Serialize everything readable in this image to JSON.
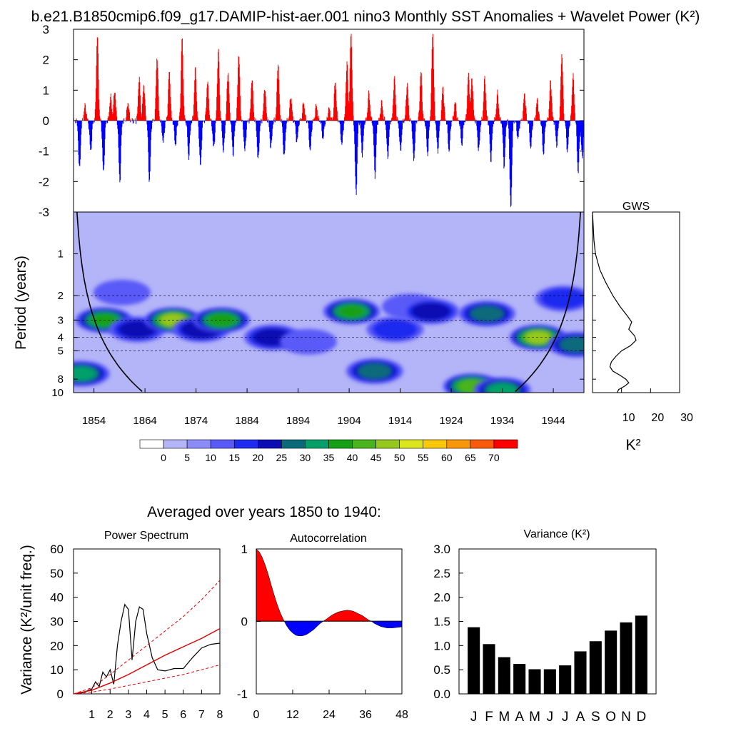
{
  "title": "b.e21.B1850cmip6.f09_g17.DAMIP-hist-aer.001 nino3 Monthly SST Anomalies + Wavelet Power (K²)",
  "colors": {
    "positive": "#ff0000",
    "negative": "#0000ff"
  },
  "chart_data": [
    {
      "id": "anomaly",
      "type": "area",
      "x_range": [
        1850,
        1950
      ],
      "ylim": [
        -3,
        3
      ],
      "y_ticks": [
        "3",
        "2",
        "1",
        "0",
        "-1",
        "-2",
        "-3"
      ],
      "events": [
        {
          "year": 1851.1,
          "amp": -1.6
        },
        {
          "year": 1852.2,
          "amp": 0.5
        },
        {
          "year": 1853.3,
          "amp": -1.0
        },
        {
          "year": 1854.6,
          "amp": 2.8
        },
        {
          "year": 1855.8,
          "amp": -1.7
        },
        {
          "year": 1857.2,
          "amp": 0.8
        },
        {
          "year": 1858.0,
          "amp": 1.0
        },
        {
          "year": 1859.0,
          "amp": -2.0
        },
        {
          "year": 1860.6,
          "amp": 0.6
        },
        {
          "year": 1862.8,
          "amp": 1.4
        },
        {
          "year": 1863.7,
          "amp": 1.2
        },
        {
          "year": 1864.8,
          "amp": -2.0
        },
        {
          "year": 1866.3,
          "amp": 2.1
        },
        {
          "year": 1867.5,
          "amp": -0.7
        },
        {
          "year": 1868.7,
          "amp": 1.6
        },
        {
          "year": 1869.9,
          "amp": -0.8
        },
        {
          "year": 1871.2,
          "amp": 2.7
        },
        {
          "year": 1872.5,
          "amp": -1.2
        },
        {
          "year": 1873.8,
          "amp": 1.7
        },
        {
          "year": 1874.8,
          "amp": -1.5
        },
        {
          "year": 1876.2,
          "amp": 1.3
        },
        {
          "year": 1877.4,
          "amp": -0.9
        },
        {
          "year": 1878.3,
          "amp": 2.3
        },
        {
          "year": 1879.3,
          "amp": -1.0
        },
        {
          "year": 1880.2,
          "amp": 1.6
        },
        {
          "year": 1881.2,
          "amp": -1.1
        },
        {
          "year": 1882.3,
          "amp": 2.2
        },
        {
          "year": 1883.5,
          "amp": -1.0
        },
        {
          "year": 1884.9,
          "amp": 1.4
        },
        {
          "year": 1886.1,
          "amp": -1.3
        },
        {
          "year": 1887.4,
          "amp": 1.1
        },
        {
          "year": 1888.6,
          "amp": -0.9
        },
        {
          "year": 1890.0,
          "amp": 1.9
        },
        {
          "year": 1891.2,
          "amp": -1.2
        },
        {
          "year": 1892.5,
          "amp": 0.8
        },
        {
          "year": 1893.7,
          "amp": -0.7
        },
        {
          "year": 1895.0,
          "amp": 0.6
        },
        {
          "year": 1896.3,
          "amp": -1.0
        },
        {
          "year": 1897.5,
          "amp": 0.5
        },
        {
          "year": 1898.8,
          "amp": -0.6
        },
        {
          "year": 1900.0,
          "amp": 0.4
        },
        {
          "year": 1901.2,
          "amp": 1.3
        },
        {
          "year": 1902.5,
          "amp": -0.8
        },
        {
          "year": 1903.5,
          "amp": 1.9
        },
        {
          "year": 1904.3,
          "amp": 2.9
        },
        {
          "year": 1905.3,
          "amp": -2.4
        },
        {
          "year": 1906.5,
          "amp": -1.1
        },
        {
          "year": 1907.8,
          "amp": 0.9
        },
        {
          "year": 1909.0,
          "amp": -1.8
        },
        {
          "year": 1910.3,
          "amp": 0.6
        },
        {
          "year": 1911.5,
          "amp": -1.2
        },
        {
          "year": 1912.8,
          "amp": 1.4
        },
        {
          "year": 1914.0,
          "amp": -1.0
        },
        {
          "year": 1915.3,
          "amp": 1.2
        },
        {
          "year": 1916.6,
          "amp": -1.3
        },
        {
          "year": 1918.0,
          "amp": 1.6
        },
        {
          "year": 1919.3,
          "amp": -1.1
        },
        {
          "year": 1920.3,
          "amp": 2.9
        },
        {
          "year": 1921.3,
          "amp": -1.0
        },
        {
          "year": 1922.3,
          "amp": 1.1
        },
        {
          "year": 1923.5,
          "amp": -1.0
        },
        {
          "year": 1924.7,
          "amp": 0.6
        },
        {
          "year": 1926.0,
          "amp": -0.8
        },
        {
          "year": 1927.3,
          "amp": 1.5
        },
        {
          "year": 1928.0,
          "amp": 1.4
        },
        {
          "year": 1929.3,
          "amp": -1.0
        },
        {
          "year": 1930.5,
          "amp": 1.4
        },
        {
          "year": 1931.7,
          "amp": -1.3
        },
        {
          "year": 1933.0,
          "amp": 0.9
        },
        {
          "year": 1934.3,
          "amp": -1.5
        },
        {
          "year": 1935.6,
          "amp": -2.9
        },
        {
          "year": 1937.0,
          "amp": -0.6
        },
        {
          "year": 1938.3,
          "amp": 0.9
        },
        {
          "year": 1939.5,
          "amp": -0.9
        },
        {
          "year": 1940.8,
          "amp": 0.7
        },
        {
          "year": 1942.0,
          "amp": -1.1
        },
        {
          "year": 1943.4,
          "amp": 1.3
        },
        {
          "year": 1944.6,
          "amp": -0.8
        },
        {
          "year": 1945.6,
          "amp": 2.2
        },
        {
          "year": 1946.7,
          "amp": -1.0
        },
        {
          "year": 1947.8,
          "amp": 1.5
        },
        {
          "year": 1948.8,
          "amp": -1.7
        },
        {
          "year": 1949.6,
          "amp": -1.2
        }
      ]
    },
    {
      "id": "wavelet",
      "type": "heatmap",
      "ylabel": "Period (years)",
      "x_range": [
        1850,
        1950
      ],
      "x_ticks": [
        "1854",
        "1864",
        "1874",
        "1884",
        "1894",
        "1904",
        "1914",
        "1924",
        "1934",
        "1944"
      ],
      "y_range_years": [
        0.5,
        10
      ],
      "y_log": true,
      "y_ticks": [
        "1",
        "2",
        "3",
        "4",
        "5",
        "8",
        "10"
      ],
      "dashed_periods": [
        2,
        3,
        4,
        5
      ],
      "colorbar": {
        "levels": [
          "0",
          "5",
          "10",
          "15",
          "20",
          "25",
          "30",
          "35",
          "40",
          "45",
          "50",
          "55",
          "60",
          "65",
          "70"
        ],
        "colors": [
          "#ffffff",
          "#b4b4f8",
          "#8c8cf8",
          "#5a5af8",
          "#1f2cf0",
          "#0d0db4",
          "#0a6a7a",
          "#06a06a",
          "#16a016",
          "#4ab41e",
          "#96c81e",
          "#dce61e",
          "#fac80a",
          "#fa960a",
          "#fa5a0a",
          "#ff0000"
        ]
      },
      "blobs": [
        {
          "year": 1851.5,
          "period": 7.3,
          "value": 30
        },
        {
          "year": 1856.0,
          "period": 3.0,
          "value": 36
        },
        {
          "year": 1859.5,
          "period": 1.9,
          "value": 12
        },
        {
          "year": 1862.5,
          "period": 3.5,
          "value": 20
        },
        {
          "year": 1869.5,
          "period": 3.0,
          "value": 48
        },
        {
          "year": 1875.0,
          "period": 3.5,
          "value": 24
        },
        {
          "year": 1879.0,
          "period": 3.0,
          "value": 38
        },
        {
          "year": 1883.0,
          "period": 2.1,
          "value": 9
        },
        {
          "year": 1889.0,
          "period": 4.0,
          "value": 22
        },
        {
          "year": 1896.0,
          "period": 4.3,
          "value": 14
        },
        {
          "year": 1904.5,
          "period": 2.6,
          "value": 36
        },
        {
          "year": 1909.0,
          "period": 7.0,
          "value": 26
        },
        {
          "year": 1913.0,
          "period": 3.5,
          "value": 16
        },
        {
          "year": 1916.0,
          "period": 2.4,
          "value": 12
        },
        {
          "year": 1920.0,
          "period": 2.6,
          "value": 22
        },
        {
          "year": 1928.0,
          "period": 9.0,
          "value": 44
        },
        {
          "year": 1931.0,
          "period": 2.7,
          "value": 26
        },
        {
          "year": 1934.0,
          "period": 9.6,
          "value": 30
        },
        {
          "year": 1941.0,
          "period": 4.0,
          "value": 48
        },
        {
          "year": 1946.0,
          "period": 2.1,
          "value": 18
        },
        {
          "year": 1948.5,
          "period": 4.5,
          "value": 26
        }
      ]
    },
    {
      "id": "gws",
      "type": "line",
      "title": "GWS",
      "xlabel": "K²",
      "x_ticks": [
        "10",
        "20",
        "30"
      ],
      "xlim": [
        0,
        30
      ],
      "periods": [
        0.5,
        0.8,
        1.0,
        1.3,
        1.6,
        2.0,
        2.4,
        2.8,
        3.1,
        3.5,
        3.9,
        4.2,
        4.6,
        5.0,
        5.5,
        6.0,
        6.5,
        7.0,
        7.5,
        8.0,
        8.5,
        9.0,
        9.5,
        10.0
      ],
      "values": [
        0.0,
        0.5,
        1.0,
        2.5,
        4.5,
        7.0,
        9.5,
        12.0,
        13.5,
        12.5,
        14.5,
        15.0,
        13.0,
        10.0,
        8.0,
        6.5,
        6.0,
        7.0,
        9.5,
        11.5,
        12.5,
        11.0,
        9.0,
        8.5
      ]
    },
    {
      "id": "power-spectrum",
      "type": "line",
      "heading": "Averaged over years 1850 to 1940:",
      "title": "Power Spectrum",
      "ylabel": "Variance (K²/unit freq.)",
      "xlim": [
        0,
        8
      ],
      "ylim": [
        0,
        60
      ],
      "x_ticks": [
        "1",
        "2",
        "3",
        "4",
        "5",
        "6",
        "7",
        "8"
      ],
      "y_ticks": [
        "0",
        "10",
        "20",
        "30",
        "40",
        "50",
        "60"
      ],
      "series": [
        {
          "x": [
            0.0,
            0.5,
            1.0,
            1.2,
            1.4,
            1.6,
            1.8,
            2.0,
            2.2,
            2.4,
            2.6,
            2.8,
            3.0,
            3.2,
            3.4,
            3.6,
            3.8,
            4.0,
            4.3,
            4.6,
            5.0,
            5.5,
            6.0,
            6.5,
            7.0,
            7.5,
            8.0
          ],
          "y": [
            0.0,
            0.5,
            2.0,
            5.0,
            3.0,
            9.0,
            7.0,
            10.0,
            4.0,
            20.0,
            30.0,
            37.0,
            35.0,
            14.0,
            30.0,
            36.0,
            35.0,
            25.0,
            15.0,
            10.0,
            9.5,
            10.5,
            10.5,
            15.0,
            19.0,
            20.5,
            21.0
          ]
        },
        {
          "x": [
            0,
            1,
            2,
            3,
            4,
            5,
            6,
            7,
            8
          ],
          "y": [
            0,
            1.5,
            4.5,
            8,
            12,
            16,
            19.5,
            23,
            27
          ]
        },
        {
          "x": [
            0,
            1,
            2,
            3,
            4,
            5,
            6,
            7,
            8
          ],
          "y": [
            0,
            2.5,
            8,
            14,
            20,
            26,
            32,
            39,
            47
          ]
        },
        {
          "x": [
            0,
            1,
            2,
            3,
            4,
            5,
            6,
            7,
            8
          ],
          "y": [
            0,
            0.7,
            2,
            3.5,
            5,
            6.5,
            8,
            10,
            12
          ]
        }
      ]
    },
    {
      "id": "autocorrelation",
      "type": "area",
      "title": "Autocorrelation",
      "xlim": [
        0,
        48
      ],
      "ylim": [
        -1,
        1
      ],
      "x_ticks": [
        "0",
        "12",
        "24",
        "36",
        "48"
      ],
      "y_ticks": [
        "1",
        "0",
        "-1"
      ],
      "lags": [
        0,
        1,
        2,
        3,
        4,
        5,
        6,
        7,
        8,
        9,
        10,
        11,
        12,
        13,
        14,
        15,
        16,
        17,
        18,
        19,
        20,
        21,
        22,
        23,
        24,
        25,
        26,
        27,
        28,
        29,
        30,
        31,
        32,
        33,
        34,
        35,
        36,
        37,
        38,
        39,
        40,
        41,
        42,
        43,
        44,
        45,
        46,
        47,
        48
      ],
      "values": [
        1.0,
        0.96,
        0.88,
        0.77,
        0.64,
        0.49,
        0.35,
        0.22,
        0.11,
        0.02,
        -0.06,
        -0.12,
        -0.16,
        -0.19,
        -0.2,
        -0.2,
        -0.19,
        -0.17,
        -0.14,
        -0.11,
        -0.07,
        -0.03,
        0.0,
        0.03,
        0.06,
        0.09,
        0.11,
        0.13,
        0.14,
        0.15,
        0.155,
        0.15,
        0.14,
        0.12,
        0.1,
        0.08,
        0.05,
        0.02,
        0.0,
        -0.03,
        -0.05,
        -0.07,
        -0.08,
        -0.09,
        -0.09,
        -0.09,
        -0.085,
        -0.08,
        -0.075
      ]
    },
    {
      "id": "variance",
      "type": "bar",
      "title": "Variance (K²)",
      "categories": [
        "J",
        "F",
        "M",
        "A",
        "M",
        "J",
        "J",
        "A",
        "S",
        "O",
        "N",
        "D"
      ],
      "values": [
        1.38,
        1.03,
        0.76,
        0.62,
        0.51,
        0.51,
        0.59,
        0.88,
        1.09,
        1.31,
        1.48,
        1.62
      ],
      "ylim": [
        0,
        3
      ],
      "y_ticks": [
        "0.0",
        "0.5",
        "1.0",
        "1.5",
        "2.0",
        "2.5",
        "3.0"
      ]
    }
  ]
}
